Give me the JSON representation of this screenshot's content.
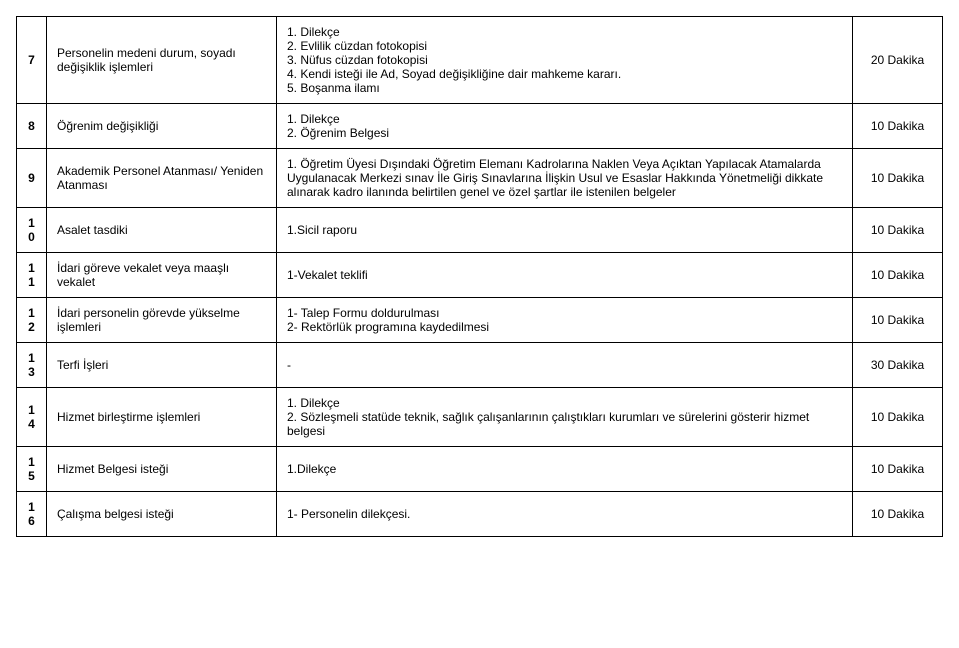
{
  "rows": [
    {
      "num": "7",
      "name": "Personelin medeni durum, soyadı değişiklik işlemleri",
      "docs": "1. Dilekçe\n2. Evlilik cüzdan fotokopisi\n3. Nüfus cüzdan fotokopisi\n4. Kendi isteği ile Ad, Soyad değişikliğine dair mahkeme kararı.\n5. Boşanma ilamı",
      "time": "20 Dakika"
    },
    {
      "num": "8",
      "name": "Öğrenim değişikliği",
      "docs": "1. Dilekçe\n2. Öğrenim Belgesi",
      "time": "10 Dakika"
    },
    {
      "num": "9",
      "name": "Akademik Personel Atanması/ Yeniden Atanması",
      "docs": "1. Öğretim Üyesi Dışındaki Öğretim Elemanı Kadrolarına Naklen Veya Açıktan Yapılacak Atamalarda Uygulanacak Merkezi sınav İle Giriş Sınavlarına İlişkin Usul ve Esaslar Hakkında Yönetmeliği dikkate alınarak kadro ilanında belirtilen genel ve özel şartlar ile istenilen belgeler",
      "time": "10 Dakika"
    },
    {
      "num": "10",
      "name": "Asalet tasdiki",
      "docs": "1.Sicil raporu",
      "time": "10 Dakika"
    },
    {
      "num": "11",
      "name": "İdari göreve vekalet veya maaşlı vekalet",
      "docs": "1-Vekalet teklifi",
      "time": "10 Dakika"
    },
    {
      "num": "12",
      "name": "İdari personelin görevde yükselme işlemleri",
      "docs": "1- Talep Formu doldurulması\n2- Rektörlük programına kaydedilmesi",
      "time": "10 Dakika"
    },
    {
      "num": "13",
      "name": "Terfi İşleri",
      "docs": "-",
      "time": "30 Dakika"
    },
    {
      "num": "14",
      "name": "Hizmet birleştirme işlemleri",
      "docs": "1. Dilekçe\n2. Sözleşmeli statüde teknik, sağlık çalışanlarının çalıştıkları kurumları ve sürelerini gösterir hizmet belgesi",
      "time": "10 Dakika"
    },
    {
      "num": "15",
      "name": "Hizmet Belgesi isteği",
      "docs": "1.Dilekçe",
      "time": "10 Dakika"
    },
    {
      "num": "16",
      "name": "Çalışma belgesi isteği",
      "docs": "1- Personelin dilekçesi.",
      "time": "10 Dakika"
    }
  ]
}
